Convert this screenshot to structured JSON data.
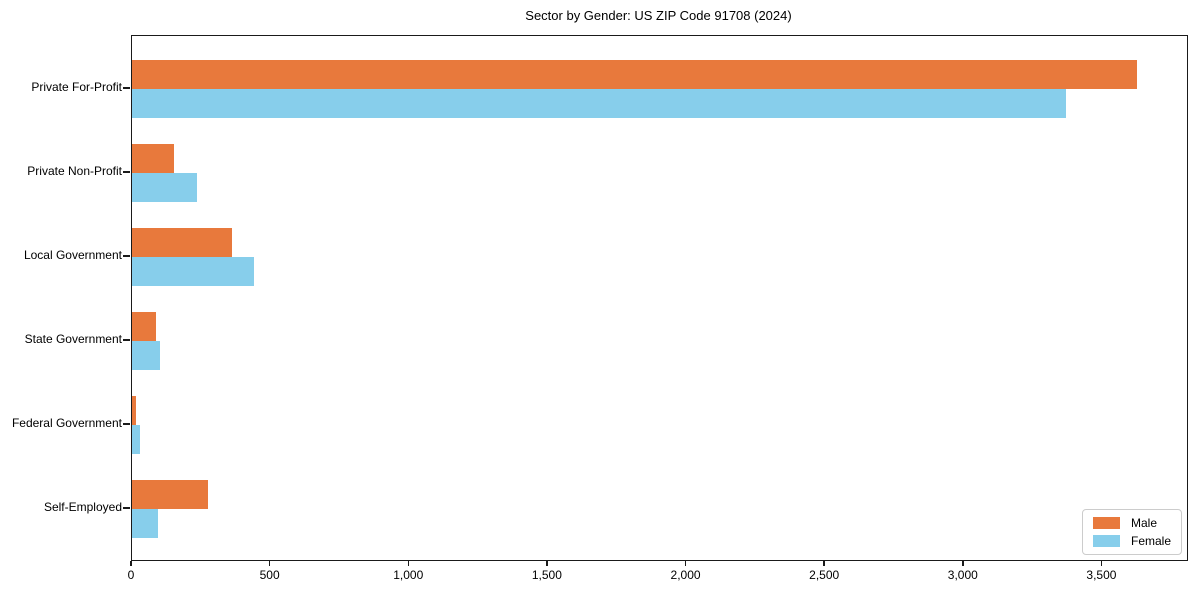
{
  "title": "Sector by Gender: US ZIP Code 91708 (2024)",
  "chart_data": {
    "type": "bar",
    "orientation": "horizontal",
    "title": "Sector by Gender: US ZIP Code 91708 (2024)",
    "xlabel": "",
    "ylabel": "",
    "categories": [
      "Private For-Profit",
      "Private Non-Profit",
      "Local Government",
      "State Government",
      "Federal Government",
      "Self-Employed"
    ],
    "series": [
      {
        "name": "Male",
        "color": "#E8793C",
        "values": [
          3625,
          150,
          360,
          85,
          15,
          275
        ]
      },
      {
        "name": "Female",
        "color": "#87CEEB",
        "values": [
          3370,
          235,
          440,
          100,
          30,
          95
        ]
      }
    ],
    "xlim": [
      0,
      3805
    ],
    "xticks": [
      0,
      500,
      1000,
      1500,
      2000,
      2500,
      3000,
      3500
    ],
    "xtick_labels": [
      "0",
      "500",
      "1,000",
      "1,500",
      "2,000",
      "2,500",
      "3,000",
      "3,500"
    ],
    "grid": false,
    "legend_position": "lower right"
  }
}
